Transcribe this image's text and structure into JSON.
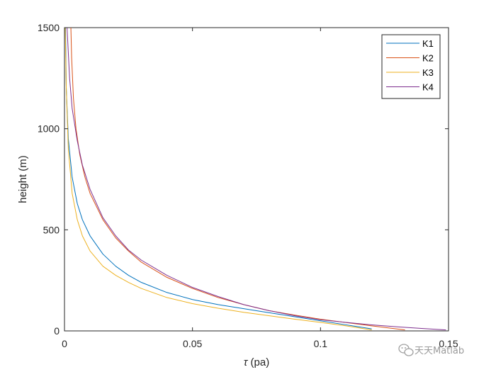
{
  "chart_data": {
    "type": "line",
    "xlabel_symbol": "τ",
    "xlabel_unit": " (pa)",
    "ylabel": "height (m)",
    "xlim": [
      0,
      0.15
    ],
    "ylim": [
      0,
      1500
    ],
    "xticks": [
      0,
      0.05,
      0.1,
      0.15
    ],
    "xtick_labels": [
      "0",
      "0.05",
      "0.1",
      "0.15"
    ],
    "yticks": [
      0,
      500,
      1000,
      1500
    ],
    "ytick_labels": [
      "0",
      "500",
      "1000",
      "1500"
    ],
    "grid": false,
    "legend_position": "top-right",
    "series": [
      {
        "name": "K1",
        "color": "#0072BD",
        "points": [
          [
            0.12,
            10
          ],
          [
            0.11,
            30
          ],
          [
            0.1,
            50
          ],
          [
            0.09,
            70
          ],
          [
            0.08,
            90
          ],
          [
            0.07,
            110
          ],
          [
            0.06,
            130
          ],
          [
            0.05,
            155
          ],
          [
            0.04,
            190
          ],
          [
            0.03,
            240
          ],
          [
            0.025,
            275
          ],
          [
            0.02,
            320
          ],
          [
            0.015,
            380
          ],
          [
            0.01,
            470
          ],
          [
            0.007,
            550
          ],
          [
            0.005,
            630
          ],
          [
            0.003,
            760
          ],
          [
            0.0015,
            950
          ],
          [
            0.0007,
            1200
          ],
          [
            0.0004,
            1500
          ]
        ]
      },
      {
        "name": "K2",
        "color": "#D95319",
        "points": [
          [
            0.133,
            5
          ],
          [
            0.12,
            25
          ],
          [
            0.1,
            58
          ],
          [
            0.09,
            78
          ],
          [
            0.08,
            100
          ],
          [
            0.07,
            130
          ],
          [
            0.06,
            165
          ],
          [
            0.05,
            210
          ],
          [
            0.04,
            265
          ],
          [
            0.03,
            340
          ],
          [
            0.025,
            395
          ],
          [
            0.02,
            460
          ],
          [
            0.015,
            550
          ],
          [
            0.01,
            680
          ],
          [
            0.008,
            760
          ],
          [
            0.006,
            870
          ],
          [
            0.0045,
            1000
          ],
          [
            0.0035,
            1150
          ],
          [
            0.0028,
            1350
          ],
          [
            0.0025,
            1500
          ]
        ]
      },
      {
        "name": "K3",
        "color": "#EDB120",
        "points": [
          [
            0.12,
            5
          ],
          [
            0.11,
            25
          ],
          [
            0.1,
            42
          ],
          [
            0.09,
            58
          ],
          [
            0.08,
            75
          ],
          [
            0.07,
            92
          ],
          [
            0.06,
            112
          ],
          [
            0.05,
            135
          ],
          [
            0.04,
            165
          ],
          [
            0.03,
            210
          ],
          [
            0.025,
            240
          ],
          [
            0.02,
            275
          ],
          [
            0.015,
            320
          ],
          [
            0.01,
            395
          ],
          [
            0.007,
            470
          ],
          [
            0.005,
            550
          ],
          [
            0.003,
            680
          ],
          [
            0.0015,
            900
          ],
          [
            0.0007,
            1200
          ],
          [
            0.0003,
            1500
          ]
        ]
      },
      {
        "name": "K4",
        "color": "#7E2F8E",
        "points": [
          [
            0.149,
            5
          ],
          [
            0.14,
            12
          ],
          [
            0.13,
            20
          ],
          [
            0.12,
            30
          ],
          [
            0.11,
            42
          ],
          [
            0.1,
            55
          ],
          [
            0.09,
            75
          ],
          [
            0.08,
            100
          ],
          [
            0.07,
            130
          ],
          [
            0.06,
            170
          ],
          [
            0.05,
            215
          ],
          [
            0.04,
            275
          ],
          [
            0.03,
            350
          ],
          [
            0.025,
            400
          ],
          [
            0.02,
            470
          ],
          [
            0.015,
            560
          ],
          [
            0.01,
            700
          ],
          [
            0.007,
            820
          ],
          [
            0.005,
            940
          ],
          [
            0.003,
            1100
          ],
          [
            0.002,
            1250
          ],
          [
            0.001,
            1500
          ]
        ]
      }
    ]
  },
  "watermark": {
    "icon": "wechat-icon",
    "text": "天天Matlab"
  }
}
